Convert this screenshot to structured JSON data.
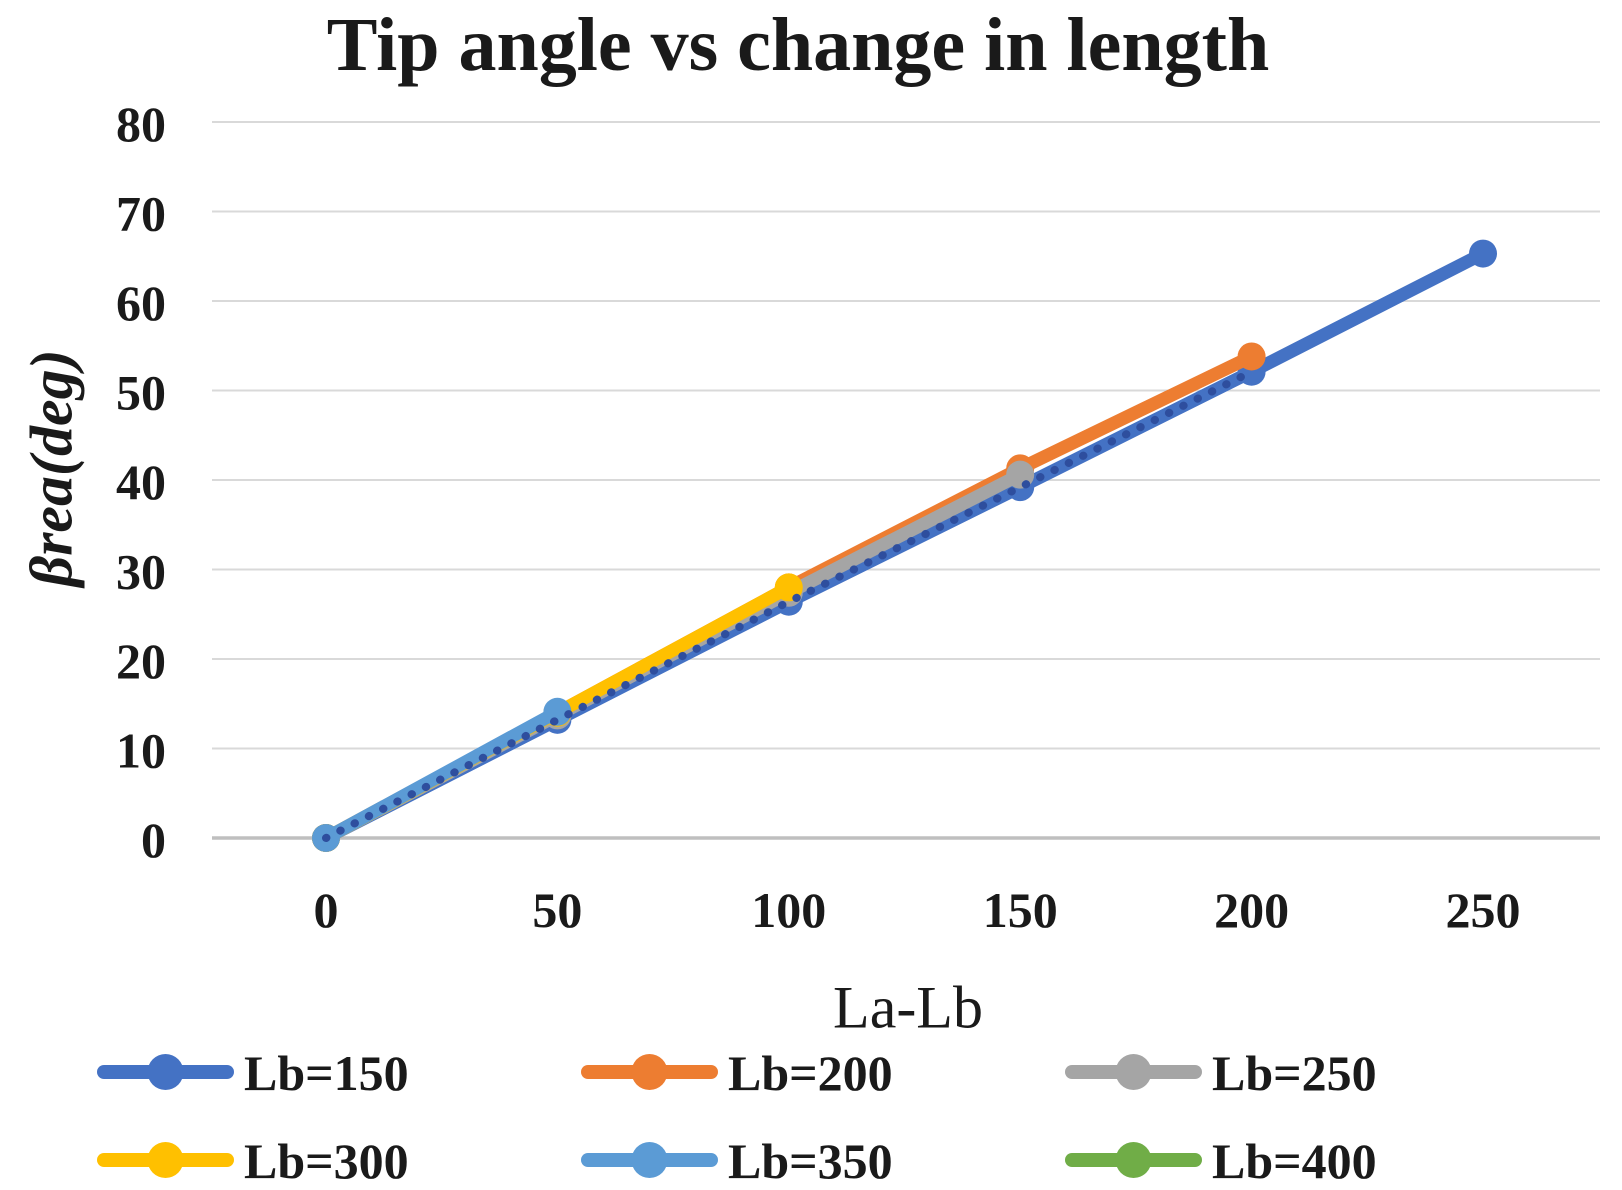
{
  "chart_data": {
    "type": "line",
    "title": "Tip angle vs change in length",
    "xlabel": "La-Lb",
    "ylabel": "βrea(deg)",
    "x_ticks": [
      0,
      50,
      100,
      150,
      200,
      250
    ],
    "y_ticks": [
      0,
      10,
      20,
      30,
      40,
      50,
      60,
      70,
      80
    ],
    "xlim": [
      -25,
      275
    ],
    "ylim": [
      0,
      80
    ],
    "grid": true,
    "legend_position": "bottom",
    "axis_color": "#BFBFBF",
    "gridline_color": "#D9D9D9",
    "text_color": "#1a1a1a",
    "series": [
      {
        "name": "Lb=150",
        "color": "#4472C4",
        "style": "solid",
        "in_legend": true,
        "x": [
          0,
          50,
          100,
          150,
          200,
          250
        ],
        "values": [
          0,
          13.2,
          26.4,
          39.2,
          52.1,
          65.3
        ]
      },
      {
        "name": "Lb=200",
        "color": "#ED7D31",
        "style": "solid",
        "in_legend": true,
        "x": [
          0,
          50,
          100,
          150,
          200
        ],
        "values": [
          0,
          14.0,
          28.0,
          41.3,
          53.8
        ]
      },
      {
        "name": "Lb=250",
        "color": "#A5A5A5",
        "style": "solid",
        "in_legend": true,
        "x": [
          0,
          50,
          100,
          150
        ],
        "values": [
          0,
          13.7,
          27.4,
          40.6
        ]
      },
      {
        "name": "Lb=300",
        "color": "#FFC000",
        "style": "solid",
        "in_legend": true,
        "x": [
          0,
          50,
          100
        ],
        "values": [
          0,
          14.0,
          28.0
        ]
      },
      {
        "name": "Lb=350",
        "color": "#5B9BD5",
        "style": "solid",
        "in_legend": true,
        "x": [
          0,
          50
        ],
        "values": [
          0,
          14.1
        ]
      },
      {
        "name": "Lb=400",
        "color": "#70AD47",
        "style": "solid",
        "in_legend": true,
        "x": [
          0
        ],
        "values": [
          0
        ]
      },
      {
        "name": "overlay-dotted",
        "color": "#2E4E9E",
        "style": "dotted",
        "in_legend": false,
        "x": [
          0,
          50,
          100,
          150,
          200
        ],
        "values": [
          0,
          13.2,
          26.4,
          39.2,
          52.1
        ]
      }
    ]
  }
}
